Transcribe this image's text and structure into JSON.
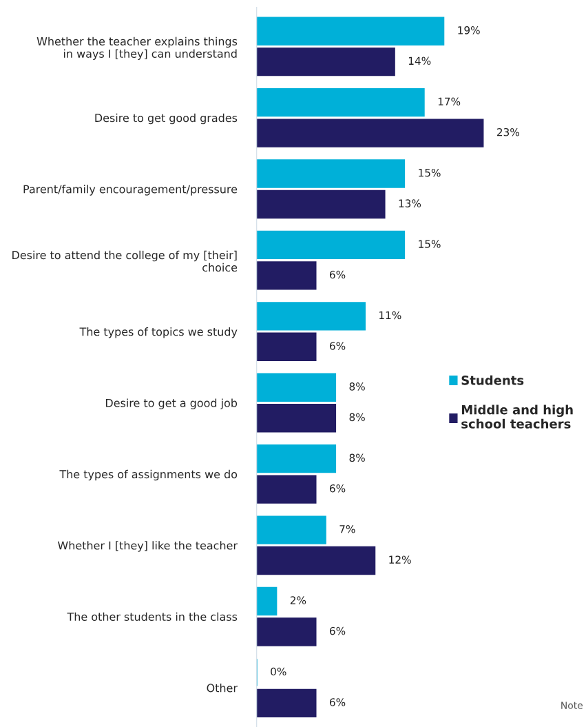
{
  "chart_data": {
    "type": "bar",
    "orientation": "horizontal",
    "legend": "right",
    "grid": false,
    "categories": [
      "Whether the teacher explains things\nin ways I [they] can understand",
      "Desire to get good grades",
      "Parent/family encouragement/pressure",
      "Desire to attend the college of my [their]\nchoice",
      "The types of topics we study",
      "Desire to get a good job",
      "The types of assignments we do",
      "Whether I [they] like the teacher",
      "The other students in the class",
      "Other"
    ],
    "series": [
      {
        "name": "Students",
        "color": "#00b0d8",
        "values": [
          19,
          17,
          15,
          15,
          11,
          8,
          8,
          7,
          2,
          0
        ],
        "value_labels": [
          "19%",
          "17%",
          "15%",
          "15%",
          "11%",
          "8%",
          "8%",
          "7%",
          "2%",
          "0%"
        ]
      },
      {
        "name": "Middle and high\nschool teachers",
        "color": "#221c63",
        "values": [
          14,
          23,
          13,
          6,
          6,
          8,
          6,
          12,
          6,
          6
        ],
        "value_labels": [
          "14%",
          "23%",
          "13%",
          "6%",
          "6%",
          "8%",
          "6%",
          "12%",
          "6%",
          "6%"
        ]
      }
    ],
    "annotations": [
      "Note"
    ]
  }
}
